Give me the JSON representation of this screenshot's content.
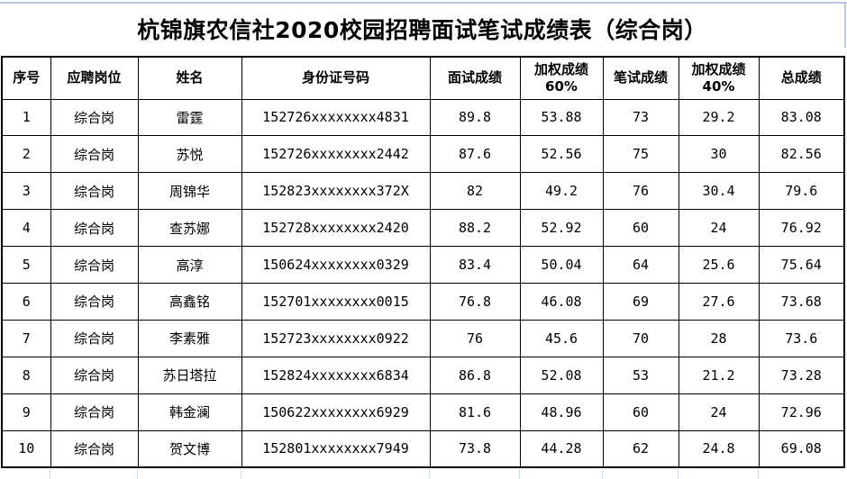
{
  "title": "杭锦旗农信社2020校园招聘面试笔试成绩表（综合岗）",
  "colors": {
    "background": "#ffffff",
    "table_border": "#000000",
    "text": "#000000",
    "gridline": "#b6c9e0"
  },
  "table": {
    "columns": [
      "序号",
      "应聘岗位",
      "姓名",
      "身份证号码",
      "面试成绩",
      "加权成绩\n60%",
      "笔试成绩",
      "加权成绩\n40%",
      "总成绩"
    ],
    "rows": [
      [
        "1",
        "综合岗",
        "雷霆",
        "152726xxxxxxxx4831",
        "89.8",
        "53.88",
        "73",
        "29.2",
        "83.08"
      ],
      [
        "2",
        "综合岗",
        "苏悦",
        "152726xxxxxxxx2442",
        "87.6",
        "52.56",
        "75",
        "30",
        "82.56"
      ],
      [
        "3",
        "综合岗",
        "周锦华",
        "152823xxxxxxxx372X",
        "82",
        "49.2",
        "76",
        "30.4",
        "79.6"
      ],
      [
        "4",
        "综合岗",
        "查苏娜",
        "152728xxxxxxxx2420",
        "88.2",
        "52.92",
        "60",
        "24",
        "76.92"
      ],
      [
        "5",
        "综合岗",
        "高淳",
        "150624xxxxxxxx0329",
        "83.4",
        "50.04",
        "64",
        "25.6",
        "75.64"
      ],
      [
        "6",
        "综合岗",
        "高鑫铭",
        "152701xxxxxxxx0015",
        "76.8",
        "46.08",
        "69",
        "27.6",
        "73.68"
      ],
      [
        "7",
        "综合岗",
        "李素雅",
        "152723xxxxxxxx0922",
        "76",
        "45.6",
        "70",
        "28",
        "73.6"
      ],
      [
        "8",
        "综合岗",
        "苏日塔拉",
        "152824xxxxxxxx6834",
        "86.8",
        "52.08",
        "53",
        "21.2",
        "73.28"
      ],
      [
        "9",
        "综合岗",
        "韩金澜",
        "150622xxxxxxxx6929",
        "81.6",
        "48.96",
        "60",
        "24",
        "72.96"
      ],
      [
        "10",
        "综合岗",
        "贺文博",
        "152801xxxxxxxx7949",
        "73.8",
        "44.28",
        "62",
        "24.8",
        "69.08"
      ]
    ]
  }
}
